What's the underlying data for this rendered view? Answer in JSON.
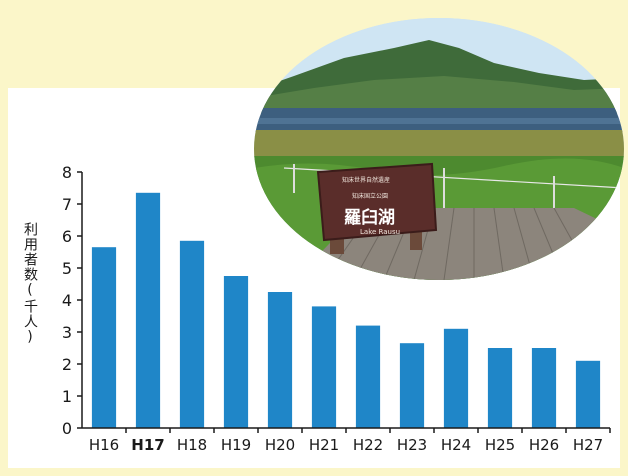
{
  "chart_data": {
    "type": "bar",
    "categories": [
      "H16",
      "H17",
      "H18",
      "H19",
      "H20",
      "H21",
      "H22",
      "H23",
      "H24",
      "H25",
      "H26",
      "H27"
    ],
    "values": [
      5.65,
      7.35,
      5.85,
      4.75,
      4.25,
      3.8,
      3.2,
      2.65,
      3.1,
      2.5,
      2.5,
      2.1
    ],
    "highlight_category": "H17",
    "ylabel": "利用者数(千人)",
    "ylim": [
      0,
      8
    ],
    "yticks": [
      0,
      1,
      2,
      3,
      4,
      5,
      6,
      7,
      8
    ],
    "grid": false,
    "bar_color": "#1f86c8"
  },
  "photo": {
    "sign_title": "羅臼湖",
    "sign_subtitle": "Lake Rausu",
    "sign_header_1": "知床世界自然遺産",
    "sign_header_2": "知床国立公園"
  },
  "colors": {
    "background": "#fbf6c9",
    "panel": "#ffffff",
    "axis": "#1a1a1a"
  }
}
